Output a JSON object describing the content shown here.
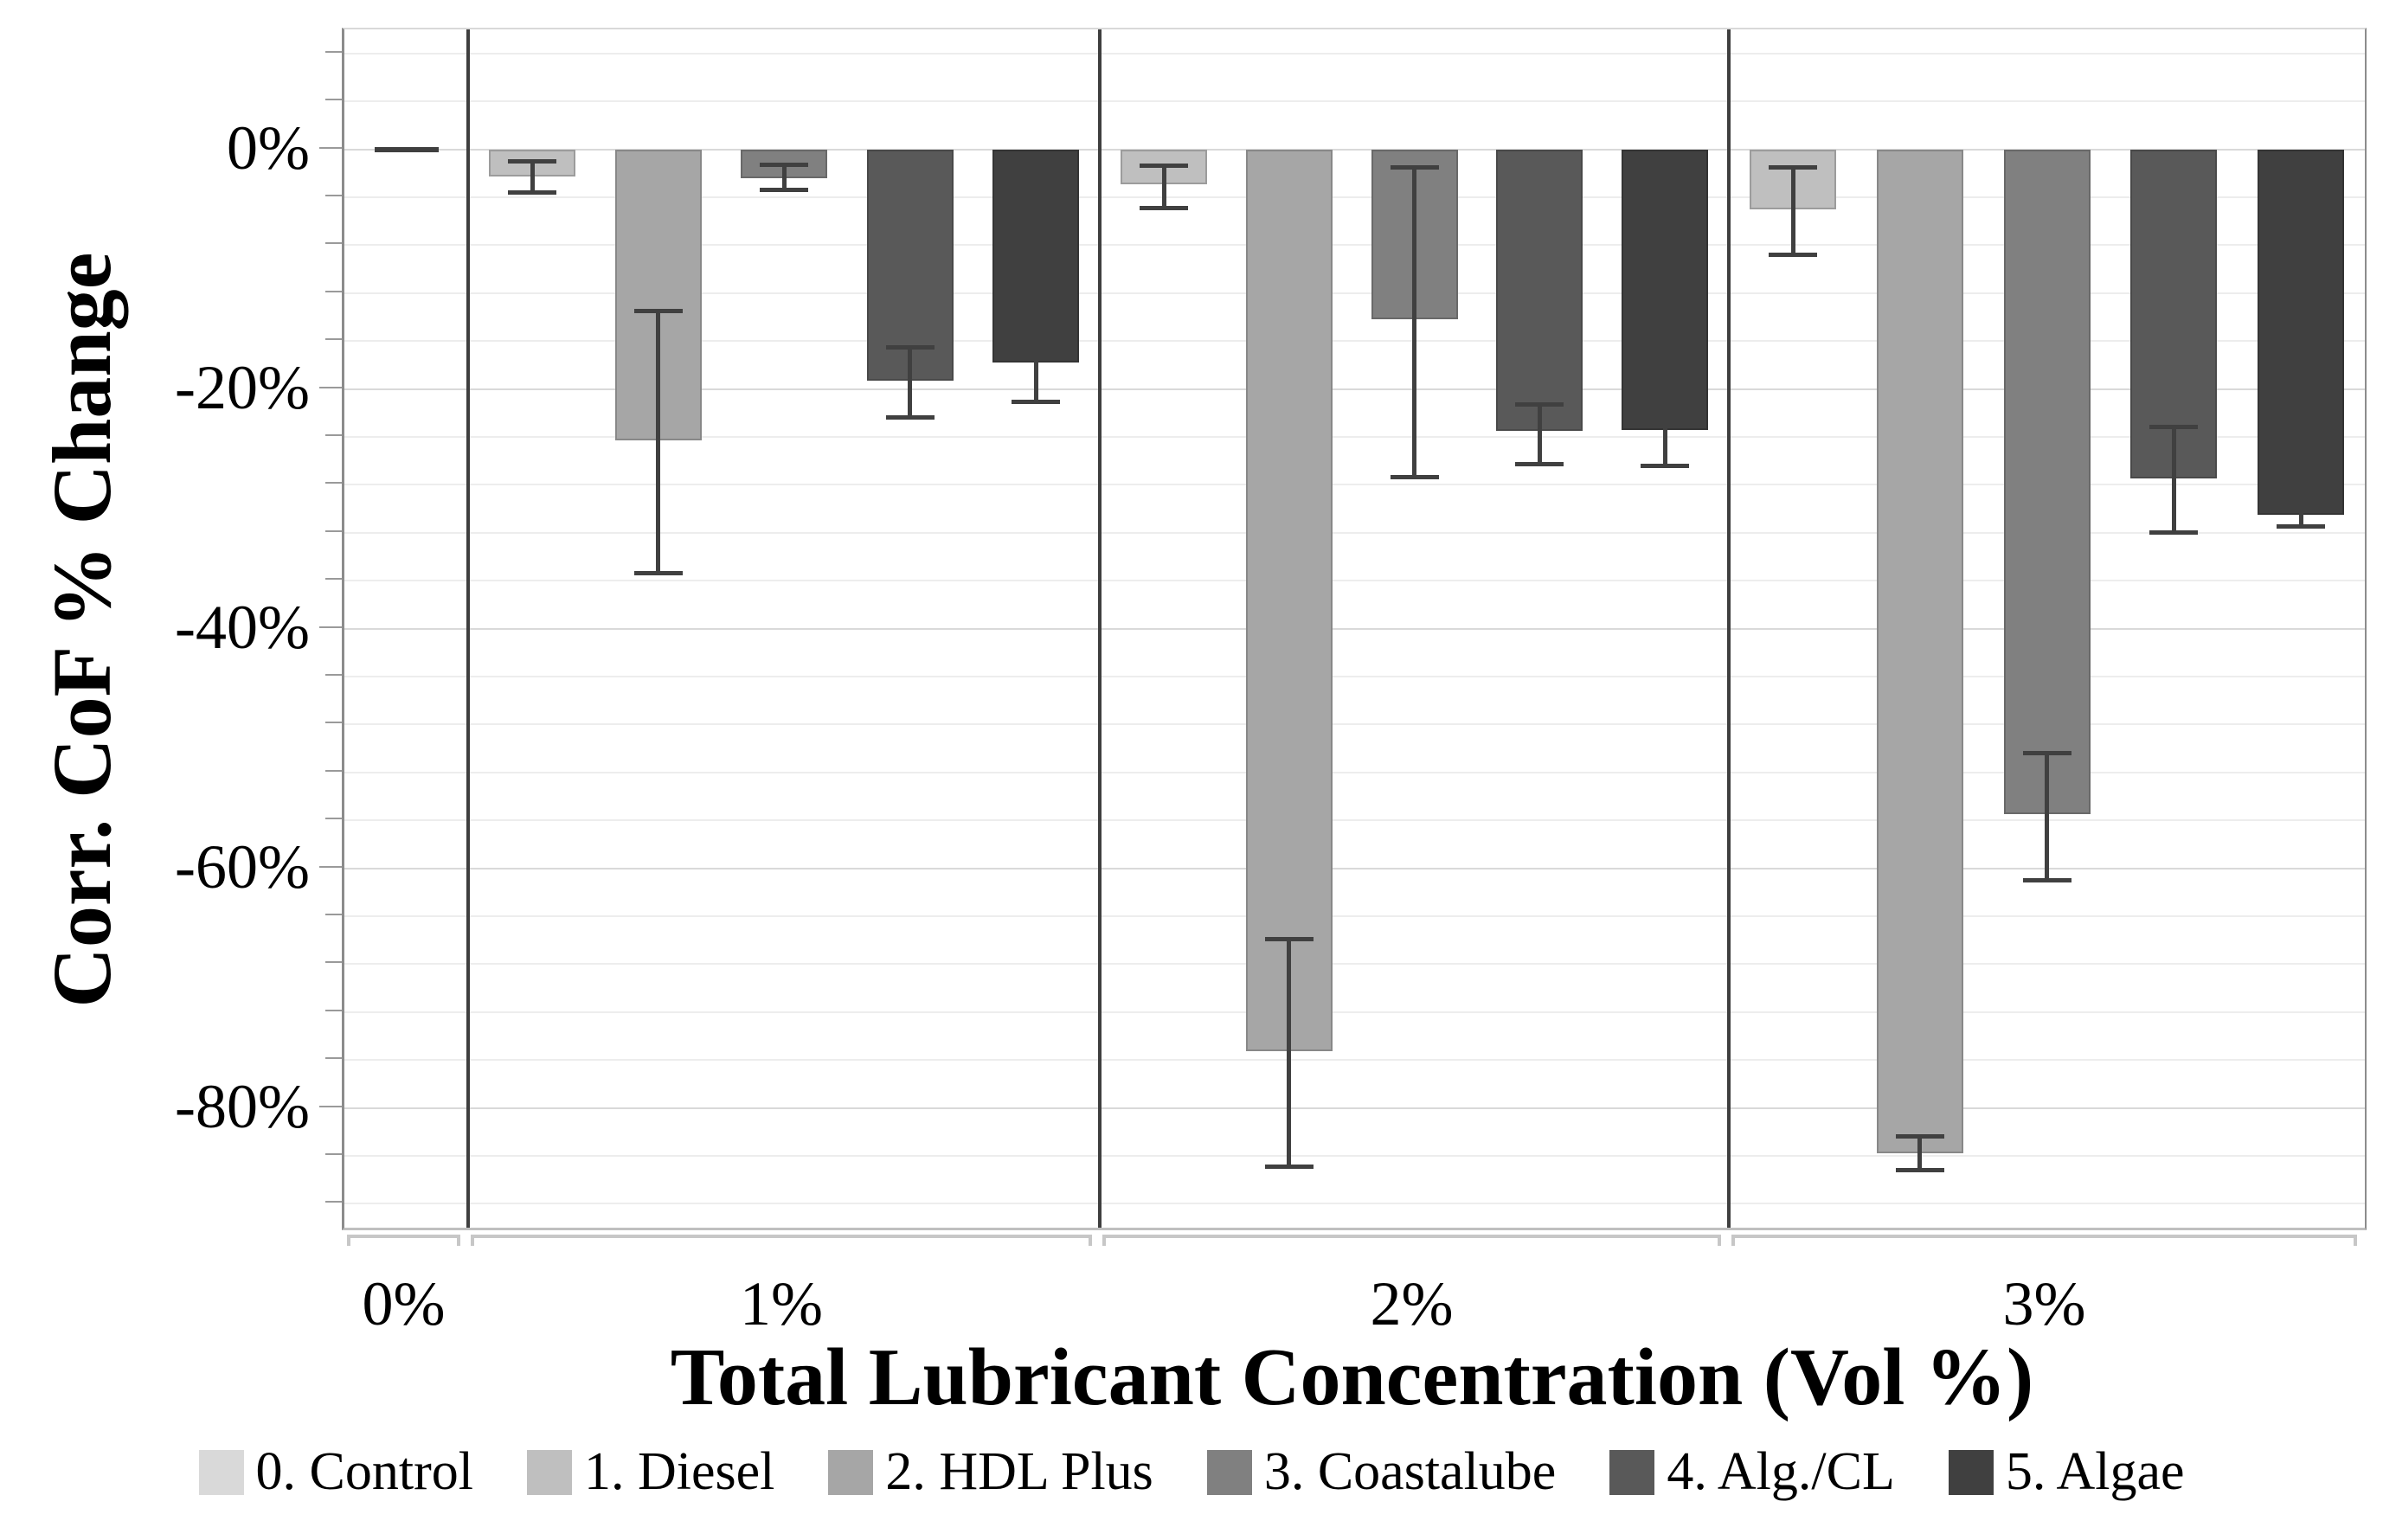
{
  "y_axis": {
    "title": "Corr. CoF % Change",
    "max": 10,
    "min": -90,
    "major_step": 20,
    "minor_step": 4,
    "major_ticks": [
      {
        "value": 0,
        "label": "0%"
      },
      {
        "value": -20,
        "label": "-20%"
      },
      {
        "value": -40,
        "label": "-40%"
      },
      {
        "value": -60,
        "label": "-60%"
      },
      {
        "value": -80,
        "label": "-80%"
      }
    ]
  },
  "x_axis": {
    "title": "Total Lubricant Concentration (Vol %)",
    "group_labels": [
      "0%",
      "1%",
      "2%",
      "3%"
    ]
  },
  "legend": {
    "items": [
      {
        "label": "0. Control",
        "color": "#d9d9d9"
      },
      {
        "label": "1. Diesel",
        "color": "#bfbfbf"
      },
      {
        "label": "2. HDL Plus",
        "color": "#a6a6a6"
      },
      {
        "label": "3. Coastalube",
        "color": "#808080"
      },
      {
        "label": "4. Alg./CL",
        "color": "#595959"
      },
      {
        "label": "5. Algae",
        "color": "#404040"
      }
    ]
  },
  "colors": {
    "gridline_minor": "#ededed",
    "gridline_major": "#d9d9d9",
    "panel_separator": "#3f3f3f",
    "error_bar": "#404040",
    "control_dash": "#3f3f3f"
  },
  "chart_data": {
    "type": "bar",
    "title": "",
    "xlabel": "Total Lubricant Concentration (Vol %)",
    "ylabel": "Corr. CoF % Change",
    "ylim": [
      -90,
      10
    ],
    "y_major_step": 20,
    "y_minor_step": 4,
    "grid": "on",
    "legend_position": "bottom",
    "categories": [
      "0%",
      "1%",
      "2%",
      "3%"
    ],
    "series": [
      {
        "name": "0. Control",
        "color": "#d9d9d9",
        "values": [
          0,
          null,
          null,
          null
        ],
        "err_lo": [
          null,
          null,
          null,
          null
        ],
        "err_hi": [
          null,
          null,
          null,
          null
        ]
      },
      {
        "name": "1. Diesel",
        "color": "#bfbfbf",
        "values": [
          null,
          -2.3,
          -2.9,
          -5.0
        ],
        "err_lo": [
          null,
          -3.6,
          -4.9,
          -8.8
        ],
        "err_hi": [
          null,
          -1.0,
          -1.4,
          -1.5
        ]
      },
      {
        "name": "2. HDL Plus",
        "color": "#a6a6a6",
        "values": [
          null,
          -24.3,
          -75.3,
          -83.8
        ],
        "err_lo": [
          null,
          -35.4,
          -84.9,
          -85.2
        ],
        "err_hi": [
          null,
          -13.5,
          -65.9,
          -82.4
        ]
      },
      {
        "name": "3. Coastalube",
        "color": "#808080",
        "values": [
          null,
          -2.4,
          -14.2,
          -55.5
        ],
        "err_lo": [
          null,
          -3.4,
          -27.4,
          -61.0
        ],
        "err_hi": [
          null,
          -1.3,
          -1.5,
          -50.4
        ]
      },
      {
        "name": "4. Alg./CL",
        "color": "#595959",
        "values": [
          null,
          -19.3,
          -23.5,
          -27.5
        ],
        "err_lo": [
          null,
          -22.4,
          -26.3,
          -32.0
        ],
        "err_hi": [
          null,
          -16.5,
          -21.3,
          -23.2
        ]
      },
      {
        "name": "5. Algae",
        "color": "#404040",
        "values": [
          null,
          -17.8,
          -23.4,
          -30.5
        ],
        "err_lo": [
          null,
          -21.1,
          -26.4,
          -31.5
        ],
        "err_hi": [
          null,
          -15.1,
          -20.6,
          -29.5
        ]
      }
    ],
    "annotations": "Control appears only in the 0% group as a flat dash at 0%"
  }
}
